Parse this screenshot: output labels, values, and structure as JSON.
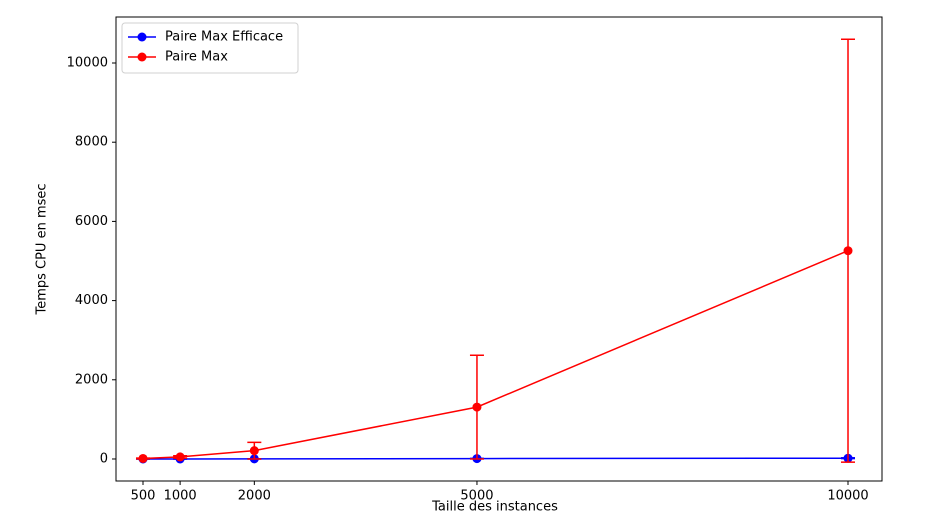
{
  "chart_data": {
    "type": "line",
    "x_label": "Taille des instances",
    "y_label": "Temps CPU en msec",
    "x": [
      500,
      1000,
      2000,
      5000,
      10000
    ],
    "series": [
      {
        "name": "Paire Max Efficace",
        "color": "#0000ff",
        "values": [
          0,
          1,
          3,
          10,
          20
        ],
        "errors": [
          0,
          1,
          2,
          5,
          10
        ]
      },
      {
        "name": "Paire Max",
        "color": "#ff0000",
        "values": [
          13,
          52,
          210,
          1310,
          5260
        ],
        "errors": [
          10,
          30,
          210,
          1310,
          5340
        ]
      }
    ],
    "xlim": [
      136,
      10458
    ],
    "xticks": [
      500,
      1000,
      2000,
      5000,
      10000
    ],
    "ylim": [
      -556,
      11162
    ],
    "yticks": [
      0,
      2000,
      4000,
      6000,
      8000,
      10000
    ],
    "legend": "upper left",
    "grid": false
  }
}
